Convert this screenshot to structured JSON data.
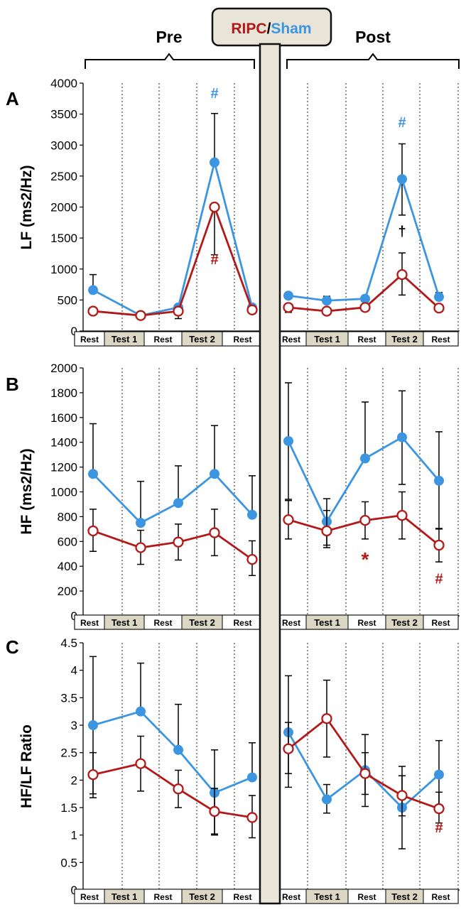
{
  "header": {
    "legend_ripc": "RIPC",
    "legend_slash": "/",
    "legend_sham": "Sham",
    "pre": "Pre",
    "post": "Post"
  },
  "colors": {
    "ripc": "#b21a1a",
    "sham": "#3c95e0",
    "panel_gray": "#e8e4d8",
    "test_fill": "#dcd6c4"
  },
  "phase_labels": [
    "Rest",
    "Test 1",
    "Rest",
    "Test 2",
    "Rest"
  ],
  "chart_data": [
    {
      "type": "line",
      "panel": "A",
      "ylabel": "LF (ms2/Hz)",
      "ylim": [
        0,
        4000
      ],
      "yticks": [
        0,
        500,
        1000,
        1500,
        2000,
        2500,
        3000,
        3500,
        4000
      ],
      "categories": [
        "Rest",
        "Test 1",
        "Rest",
        "Test 2",
        "Rest"
      ],
      "series": [
        {
          "name": "Sham",
          "pre": {
            "values": [
              660,
              250,
              380,
              2720,
              380
            ],
            "upper": [
              910,
              null,
              420,
              3510,
              420
            ],
            "lower": [
              null,
              null,
              null,
              null,
              null
            ]
          },
          "post": {
            "values": [
              570,
              490,
              520,
              2450,
              550
            ],
            "upper": [
              620,
              560,
              560,
              3020,
              620
            ],
            "lower": [
              null,
              null,
              null,
              1870,
              null
            ]
          }
        },
        {
          "name": "RIPC",
          "pre": {
            "values": [
              320,
              250,
              320,
              2000,
              340
            ],
            "upper": [
              null,
              null,
              null,
              null,
              null
            ],
            "lower": [
              null,
              200,
              200,
              1230,
              null
            ]
          },
          "post": {
            "values": [
              380,
              320,
              380,
              910,
              370
            ],
            "upper": [
              null,
              null,
              null,
              1260,
              null
            ],
            "lower": [
              300,
              null,
              null,
              580,
              null
            ]
          }
        }
      ],
      "annotations": [
        {
          "text": "#",
          "series": "Sham",
          "segment": "pre",
          "index": 3,
          "value": 3760
        },
        {
          "text": "#",
          "series": "RIPC",
          "segment": "pre",
          "index": 3,
          "value": 1080
        },
        {
          "text": "#",
          "series": "Sham",
          "segment": "post",
          "index": 3,
          "value": 3290
        },
        {
          "text": "†",
          "series": "other",
          "segment": "post",
          "index": 3,
          "value": 1530
        }
      ]
    },
    {
      "type": "line",
      "panel": "B",
      "ylabel": "HF (ms2/Hz)",
      "ylim": [
        0,
        2000
      ],
      "yticks": [
        0,
        200,
        400,
        600,
        800,
        1000,
        1200,
        1400,
        1600,
        1800,
        2000
      ],
      "categories": [
        "Rest",
        "Test 1",
        "Rest",
        "Test 2",
        "Rest"
      ],
      "series": [
        {
          "name": "Sham",
          "pre": {
            "values": [
              1145,
              750,
              910,
              1145,
              815
            ],
            "upper": [
              1550,
              1085,
              1210,
              1535,
              1130
            ],
            "lower": [
              null,
              null,
              null,
              null,
              null
            ]
          },
          "post": {
            "values": [
              1410,
              760,
              1270,
              1440,
              1090
            ],
            "upper": [
              1880,
              945,
              1725,
              1815,
              1485
            ],
            "lower": [
              940,
              570,
              null,
              1060,
              700
            ]
          }
        },
        {
          "name": "RIPC",
          "pre": {
            "values": [
              685,
              550,
              595,
              670,
              455
            ],
            "upper": [
              860,
              690,
              740,
              860,
              605
            ],
            "lower": [
              520,
              415,
              450,
              485,
              325
            ]
          },
          "post": {
            "values": [
              775,
              685,
              770,
              810,
              570
            ],
            "upper": [
              930,
              850,
              920,
              1000,
              705
            ],
            "lower": [
              620,
              550,
              620,
              620,
              435
            ]
          }
        }
      ],
      "annotations": [
        {
          "text": "*",
          "series": "RIPC",
          "segment": "post",
          "index": 2,
          "value": 480
        },
        {
          "text": "#",
          "series": "RIPC",
          "segment": "post",
          "index": 4,
          "value": 260
        }
      ]
    },
    {
      "type": "line",
      "panel": "C",
      "ylabel": "HF/LF Ratio",
      "ylim": [
        0,
        4.5
      ],
      "yticks": [
        0,
        0.5,
        1,
        1.5,
        2,
        2.5,
        3,
        3.5,
        4,
        4.5
      ],
      "categories": [
        "Rest",
        "Test 1",
        "Rest",
        "Test 2",
        "Rest"
      ],
      "series": [
        {
          "name": "Sham",
          "pre": {
            "values": [
              3.0,
              3.25,
              2.55,
              1.77,
              2.05
            ],
            "upper": [
              4.25,
              4.13,
              3.38,
              2.55,
              2.68
            ],
            "lower": [
              1.75,
              null,
              null,
              1.0,
              null
            ]
          },
          "post": {
            "values": [
              2.87,
              1.65,
              2.18,
              1.5,
              2.1
            ],
            "upper": [
              3.9,
              1.92,
              2.83,
              2.25,
              2.72
            ],
            "lower": [
              1.87,
              1.4,
              1.52,
              0.75,
              1.47
            ]
          }
        },
        {
          "name": "RIPC",
          "pre": {
            "values": [
              2.1,
              2.3,
              1.84,
              1.43,
              1.32
            ],
            "upper": [
              2.5,
              2.8,
              2.18,
              1.85,
              1.72
            ],
            "lower": [
              1.68,
              1.8,
              1.5,
              1.02,
              0.95
            ]
          },
          "post": {
            "values": [
              2.57,
              3.12,
              2.12,
              1.72,
              1.48
            ],
            "upper": [
              3.05,
              3.82,
              2.5,
              2.08,
              1.78
            ],
            "lower": [
              2.12,
              2.42,
              1.74,
              1.35,
              1.22
            ]
          }
        }
      ],
      "annotations": [
        {
          "text": "#",
          "series": "RIPC",
          "segment": "post",
          "index": 4,
          "value": 1.05
        }
      ]
    }
  ]
}
